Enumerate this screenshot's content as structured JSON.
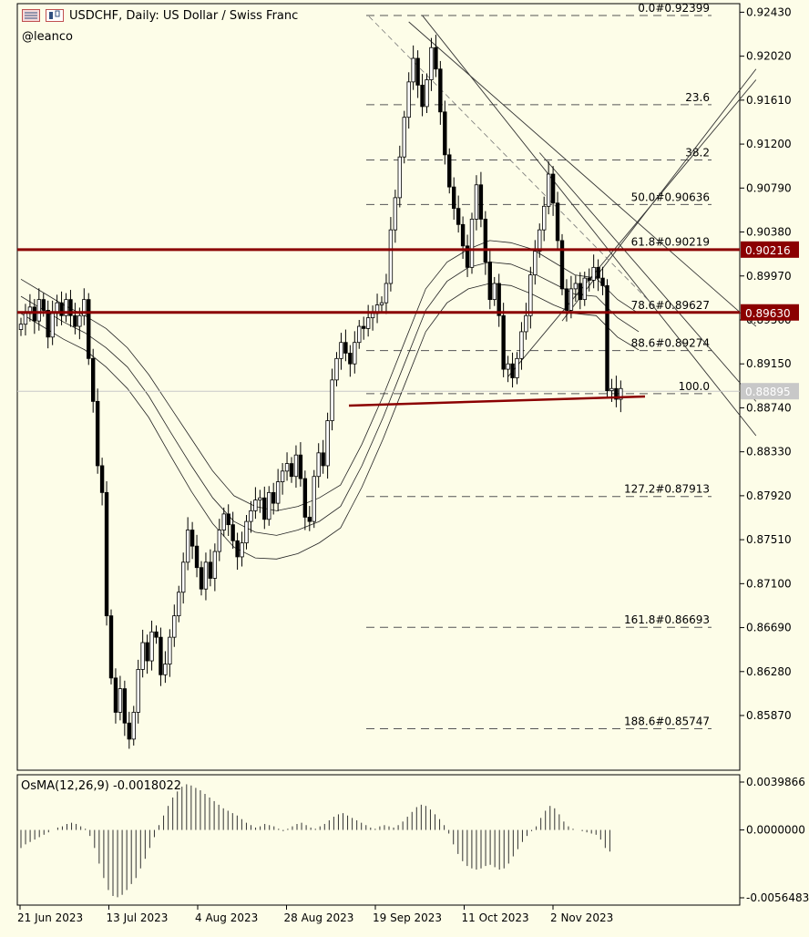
{
  "header": {
    "title": "USDCHF, Daily:  US Dollar / Swiss Franc",
    "author": "@leanco"
  },
  "colors": {
    "background": "#fdfde8",
    "axis": "#000000",
    "candle_up_fill": "#ffffff",
    "candle_down_fill": "#000000",
    "level_line": "#8b0000",
    "level_label_bg": "#8b0000",
    "current_price_label_bg": "#c8c8c8",
    "fib_line": "#555555"
  },
  "chart_data": [
    {
      "type": "candlestick",
      "title": "USDCHF, Daily:  US Dollar / Swiss Franc",
      "x_tick_labels": [
        "21 Jun 2023",
        "13 Jul 2023",
        "4 Aug 2023",
        "28 Aug 2023",
        "19 Sep 2023",
        "11 Oct 2023",
        "2 Nov 2023"
      ],
      "y_tick_labels": [
        "0.92430",
        "0.92020",
        "0.91610",
        "0.91200",
        "0.90790",
        "0.90380",
        "0.89970",
        "0.89560",
        "0.89150",
        "0.88740",
        "0.88330",
        "0.87920",
        "0.87510",
        "0.87100",
        "0.86690",
        "0.86280",
        "0.85870"
      ],
      "ylim": [
        0.8536,
        0.9251
      ],
      "close_prices": [
        0.8952,
        0.8962,
        0.8968,
        0.8955,
        0.8975,
        0.8965,
        0.894,
        0.8962,
        0.8972,
        0.896,
        0.8975,
        0.896,
        0.895,
        0.896,
        0.8975,
        0.892,
        0.888,
        0.882,
        0.8795,
        0.868,
        0.8622,
        0.859,
        0.8612,
        0.858,
        0.8565,
        0.859,
        0.863,
        0.8655,
        0.8638,
        0.8665,
        0.866,
        0.8625,
        0.8635,
        0.866,
        0.868,
        0.8702,
        0.873,
        0.876,
        0.8745,
        0.8725,
        0.8705,
        0.873,
        0.8715,
        0.874,
        0.876,
        0.8775,
        0.8765,
        0.875,
        0.8735,
        0.8748,
        0.8768,
        0.8778,
        0.8788,
        0.879,
        0.877,
        0.8795,
        0.8785,
        0.8805,
        0.8815,
        0.8822,
        0.881,
        0.883,
        0.8808,
        0.8772,
        0.8768,
        0.881,
        0.8832,
        0.882,
        0.8862,
        0.89,
        0.892,
        0.8935,
        0.8925,
        0.8915,
        0.8935,
        0.895,
        0.8948,
        0.8958,
        0.8962,
        0.897,
        0.8972,
        0.899,
        0.904,
        0.907,
        0.9108,
        0.9145,
        0.9178,
        0.92,
        0.9175,
        0.9155,
        0.918,
        0.921,
        0.919,
        0.915,
        0.911,
        0.908,
        0.906,
        0.9045,
        0.9025,
        0.9005,
        0.905,
        0.9082,
        0.905,
        0.901,
        0.8975,
        0.899,
        0.896,
        0.891,
        0.8915,
        0.8902,
        0.892,
        0.8945,
        0.896,
        0.8998,
        0.902,
        0.904,
        0.9062,
        0.9092,
        0.9065,
        0.903,
        0.8985,
        0.8965,
        0.8985,
        0.899,
        0.8975,
        0.8995,
        0.8993,
        0.9005,
        0.8995,
        0.8988,
        0.889,
        0.8892,
        0.8882,
        0.8892
      ],
      "moving_average_bands": [
        {
          "values": [
            0.8994,
            0.8982,
            0.897,
            0.896,
            0.8948,
            0.893,
            0.8905,
            0.8875,
            0.8845,
            0.8815,
            0.8792,
            0.8782,
            0.8778,
            0.8782,
            0.879,
            0.8802,
            0.884,
            0.8885,
            0.8935,
            0.8985,
            0.901,
            0.9022,
            0.903,
            0.9028,
            0.9022,
            0.901,
            0.8998,
            0.8995,
            0.8975,
            0.8962
          ]
        },
        {
          "values": [
            0.8978,
            0.8966,
            0.8954,
            0.8944,
            0.893,
            0.8912,
            0.8885,
            0.8852,
            0.882,
            0.879,
            0.8768,
            0.8758,
            0.8755,
            0.876,
            0.8768,
            0.8782,
            0.882,
            0.8865,
            0.8915,
            0.8965,
            0.8992,
            0.9005,
            0.901,
            0.9008,
            0.9,
            0.899,
            0.898,
            0.8978,
            0.8958,
            0.8945
          ]
        },
        {
          "values": [
            0.8962,
            0.895,
            0.8938,
            0.8928,
            0.8912,
            0.8892,
            0.8865,
            0.883,
            0.8796,
            0.8766,
            0.8744,
            0.8734,
            0.8733,
            0.8738,
            0.8748,
            0.8762,
            0.88,
            0.8845,
            0.8895,
            0.8945,
            0.8972,
            0.8985,
            0.899,
            0.8988,
            0.898,
            0.897,
            0.8962,
            0.896,
            0.894,
            0.8928
          ]
        }
      ],
      "fibonacci_levels": [
        {
          "label": "0.0#0.92399",
          "price": 0.92399
        },
        {
          "label": "23.6",
          "price": 0.91567
        },
        {
          "label": "38.2",
          "price": 0.91052
        },
        {
          "label": "50.0#0.90636",
          "price": 0.90636
        },
        {
          "label": "61.8#0.90219",
          "price": 0.90219
        },
        {
          "label": "78.6#0.89627",
          "price": 0.89627
        },
        {
          "label": "88.6#0.89274",
          "price": 0.89274
        },
        {
          "label": "100.0",
          "price": 0.88872
        },
        {
          "label": "127.2#0.87913",
          "price": 0.87913
        },
        {
          "label": "161.8#0.86693",
          "price": 0.86693
        },
        {
          "label": "188.6#0.85747",
          "price": 0.85747
        }
      ],
      "horizontal_levels": [
        {
          "label": "0.90216",
          "price": 0.90216
        },
        {
          "label": "0.89630",
          "price": 0.8963
        }
      ],
      "current_price": {
        "label": "0.88895",
        "price": 0.88895
      },
      "support_trendline": {
        "start_index": 82,
        "start_price": 0.888,
        "end_index": 144,
        "end_price": 0.8898
      },
      "trend_lines": [
        {
          "start_index": 89,
          "start_price": 0.924,
          "end_index": 163,
          "end_price": 0.8848
        },
        {
          "start_index": 115,
          "start_price": 0.9112,
          "end_index": 163,
          "end_price": 0.888
        },
        {
          "start_index": 86,
          "start_price": 0.9234,
          "end_index": 163,
          "end_price": 0.895
        },
        {
          "start_index": 108,
          "start_price": 0.8903,
          "end_index": 163,
          "end_price": 0.918
        },
        {
          "start_index": 120,
          "start_price": 0.8955,
          "end_index": 163,
          "end_price": 0.919
        }
      ]
    },
    {
      "type": "bar",
      "title": "OsMA(12,26,9) -0.0018022",
      "y_tick_labels": [
        "0.0039866",
        "0.0000000",
        "-0.0056483"
      ],
      "ylim": [
        -0.0056483,
        0.0039866
      ],
      "values": [
        -0.0015,
        -0.0012,
        -0.001,
        -0.0008,
        -0.0006,
        -0.0004,
        -0.0002,
        0.0,
        0.0002,
        0.0003,
        0.0005,
        0.0006,
        0.0005,
        0.0003,
        0.0001,
        -0.0005,
        -0.0015,
        -0.0028,
        -0.004,
        -0.005,
        -0.0055,
        -0.0056,
        -0.0054,
        -0.005,
        -0.0045,
        -0.004,
        -0.0032,
        -0.0024,
        -0.0015,
        -0.0006,
        0.0004,
        0.0012,
        0.002,
        0.0027,
        0.0032,
        0.0036,
        0.0038,
        0.0037,
        0.0035,
        0.0033,
        0.003,
        0.0027,
        0.0024,
        0.0021,
        0.0018,
        0.0016,
        0.0014,
        0.0012,
        0.0009,
        0.0006,
        0.0004,
        0.0002,
        0.0003,
        0.0005,
        0.0004,
        0.0003,
        0.0001,
        -0.0001,
        0.0001,
        0.0003,
        0.0005,
        0.0006,
        0.0004,
        0.0002,
        0.0001,
        0.0003,
        0.0005,
        0.0008,
        0.0011,
        0.0013,
        0.0014,
        0.0012,
        0.001,
        0.0008,
        0.0006,
        0.0004,
        0.0002,
        0.0001,
        0.0003,
        0.0004,
        0.0003,
        0.0002,
        0.0004,
        0.0007,
        0.0011,
        0.0015,
        0.0019,
        0.0021,
        0.002,
        0.0017,
        0.0013,
        0.0009,
        0.0004,
        -0.0003,
        -0.0012,
        -0.002,
        -0.0026,
        -0.003,
        -0.0032,
        -0.0033,
        -0.0032,
        -0.003,
        -0.0029,
        -0.0031,
        -0.0033,
        -0.0032,
        -0.0028,
        -0.0022,
        -0.0016,
        -0.001,
        -0.0005,
        -0.0001,
        0.0003,
        0.001,
        0.0016,
        0.002,
        0.0018,
        0.0013,
        0.0007,
        0.0003,
        0.0001,
        0.0,
        -0.0001,
        -0.0002,
        -0.0003,
        -0.0004,
        -0.0008,
        -0.0015,
        -0.0018
      ]
    }
  ]
}
